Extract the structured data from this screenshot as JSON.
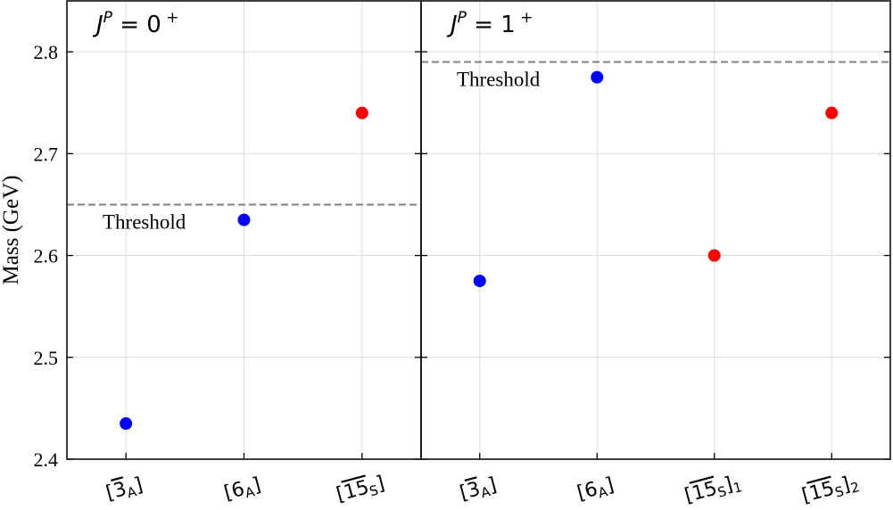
{
  "chart_data": [
    {
      "type": "scatter",
      "panel_title": {
        "j": "J",
        "p": "P",
        "rest": " = 0",
        "sup": "+"
      },
      "ylabel": "Mass (GeV)",
      "ylim": [
        2.4,
        2.85
      ],
      "yticks": [
        "2.4",
        "2.5",
        "2.6",
        "2.7",
        "2.8"
      ],
      "xlim": [
        -0.5,
        2.5
      ],
      "grid": true,
      "categories": [
        {
          "pre": "[",
          "over": "3",
          "base": "",
          "sub": "A",
          "post": "]",
          "post_sub": ""
        },
        {
          "pre": "[",
          "over": "",
          "base": "6",
          "sub": "A",
          "post": "]",
          "post_sub": ""
        },
        {
          "pre": "[",
          "over": "15",
          "base": "",
          "sub": "S",
          "post": "]",
          "post_sub": ""
        }
      ],
      "points": [
        {
          "x": 0,
          "y": 2.435,
          "color": "#0000ff"
        },
        {
          "x": 1,
          "y": 2.635,
          "color": "#0000ff"
        },
        {
          "x": 2,
          "y": 2.74,
          "color": "#ff0000"
        }
      ],
      "threshold": {
        "value": 2.65,
        "label": "Threshold",
        "label_pos": "below-left"
      }
    },
    {
      "type": "scatter",
      "panel_title": {
        "j": "J",
        "p": "P",
        "rest": " = 1",
        "sup": "+"
      },
      "ylim": [
        2.4,
        2.85
      ],
      "xlim": [
        -0.5,
        3.5
      ],
      "grid": true,
      "categories": [
        {
          "pre": "[",
          "over": "3",
          "base": "",
          "sub": "A",
          "post": "]",
          "post_sub": ""
        },
        {
          "pre": "[",
          "over": "",
          "base": "6",
          "sub": "A",
          "post": "]",
          "post_sub": ""
        },
        {
          "pre": "[",
          "over": "15",
          "base": "",
          "sub": "S",
          "post": "]",
          "post_sub": "1"
        },
        {
          "pre": "[",
          "over": "15",
          "base": "",
          "sub": "S",
          "post": "]",
          "post_sub": "2"
        }
      ],
      "points": [
        {
          "x": 0,
          "y": 2.575,
          "color": "#0000ff"
        },
        {
          "x": 1,
          "y": 2.775,
          "color": "#0000ff"
        },
        {
          "x": 2,
          "y": 2.6,
          "color": "#ff0000"
        },
        {
          "x": 3,
          "y": 2.74,
          "color": "#ff0000"
        }
      ],
      "threshold": {
        "value": 2.79,
        "label": "Threshold",
        "label_pos": "below-left"
      }
    }
  ]
}
